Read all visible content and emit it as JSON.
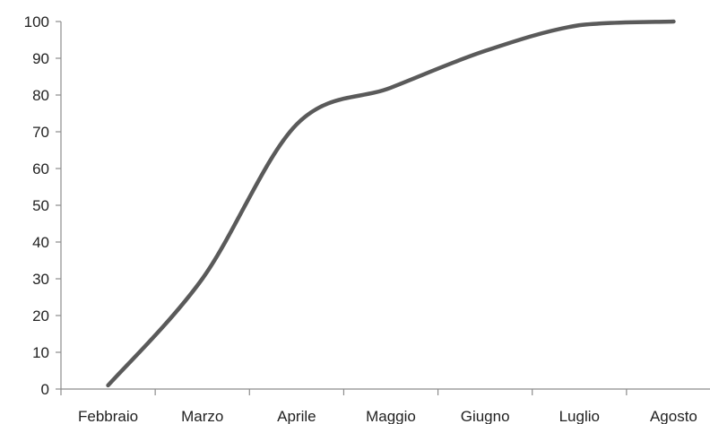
{
  "chart_data": {
    "type": "line",
    "smooth": true,
    "title": "",
    "xlabel": "",
    "ylabel": "",
    "categories": [
      "Febbraio",
      "Marzo",
      "Aprile",
      "Maggio",
      "Giugno",
      "Luglio",
      "Agosto"
    ],
    "series": [
      {
        "values": [
          1,
          30,
          72,
          82,
          92,
          99,
          100
        ],
        "color": "#5a5a5a"
      }
    ],
    "ylim": [
      0,
      100
    ],
    "yticks": [
      0,
      10,
      20,
      30,
      40,
      50,
      60,
      70,
      80,
      90,
      100
    ],
    "grid": false,
    "legend": "none"
  }
}
